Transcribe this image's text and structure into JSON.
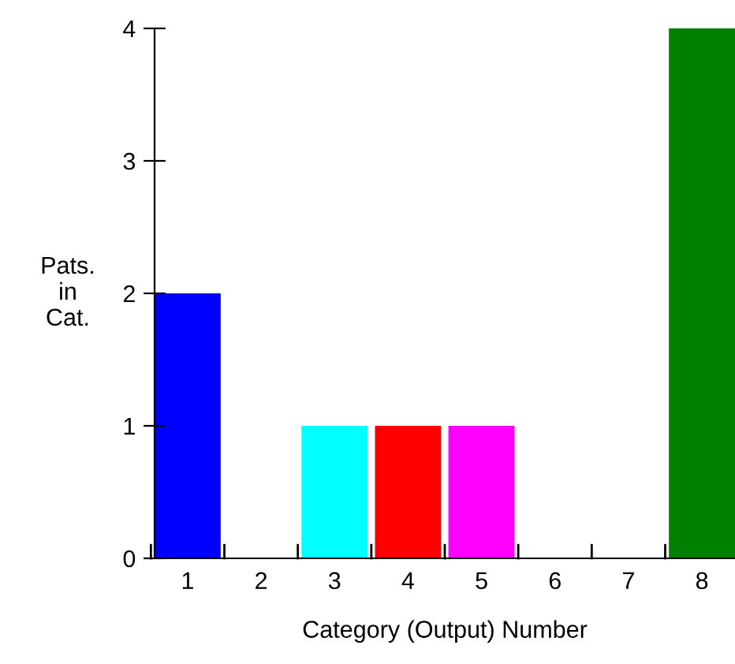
{
  "chart_data": {
    "type": "bar",
    "xlabel": "Category (Output) Number",
    "ylabel": "Pats.\nin\nCat.",
    "categories": [
      "1",
      "2",
      "3",
      "4",
      "5",
      "6",
      "7",
      "8"
    ],
    "values": [
      2,
      0,
      1,
      1,
      1,
      0,
      0,
      4
    ],
    "colors": [
      "#0000ff",
      null,
      "#00ffff",
      "#ff0000",
      "#ff00ff",
      null,
      null,
      "#008000"
    ],
    "ylim": [
      0,
      4
    ],
    "yticks": [
      0,
      1,
      2,
      3,
      4
    ],
    "grid": false,
    "legend": false
  }
}
